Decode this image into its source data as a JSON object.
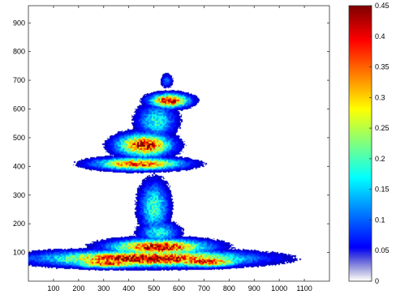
{
  "chart_data": {
    "type": "heatmap",
    "title": "",
    "xlabel": "",
    "ylabel": "",
    "xlim": [
      0,
      1200
    ],
    "ylim": [
      0,
      960
    ],
    "x_ticks": [
      100,
      200,
      300,
      400,
      500,
      600,
      700,
      800,
      900,
      1000,
      1100
    ],
    "y_ticks": [
      100,
      200,
      300,
      400,
      500,
      600,
      700,
      800,
      900
    ],
    "grid": false,
    "colorbar": {
      "colormap": "jet",
      "range": [
        0,
        0.45
      ],
      "ticks": [
        "0",
        "0.05",
        "0.1",
        "0.15",
        "0.2",
        "0.25",
        "0.3",
        "0.35",
        "0.4",
        "0.45"
      ],
      "position": "right"
    },
    "blobs": [
      {
        "cx": 470,
        "cy": 80,
        "rx": 400,
        "ry": 28,
        "peak": 0.45
      },
      {
        "cx": 520,
        "cy": 120,
        "rx": 200,
        "ry": 28,
        "peak": 0.42
      },
      {
        "cx": 320,
        "cy": 65,
        "rx": 160,
        "ry": 18,
        "peak": 0.4
      },
      {
        "cx": 700,
        "cy": 70,
        "rx": 150,
        "ry": 20,
        "peak": 0.4
      },
      {
        "cx": 520,
        "cy": 170,
        "rx": 80,
        "ry": 40,
        "peak": 0.18
      },
      {
        "cx": 500,
        "cy": 260,
        "rx": 60,
        "ry": 90,
        "peak": 0.2
      },
      {
        "cx": 440,
        "cy": 410,
        "rx": 180,
        "ry": 22,
        "peak": 0.38
      },
      {
        "cx": 460,
        "cy": 475,
        "rx": 110,
        "ry": 40,
        "peak": 0.42
      },
      {
        "cx": 510,
        "cy": 560,
        "rx": 80,
        "ry": 60,
        "peak": 0.18
      },
      {
        "cx": 560,
        "cy": 630,
        "rx": 80,
        "ry": 25,
        "peak": 0.42
      },
      {
        "cx": 550,
        "cy": 700,
        "rx": 25,
        "ry": 25,
        "peak": 0.1
      }
    ]
  }
}
